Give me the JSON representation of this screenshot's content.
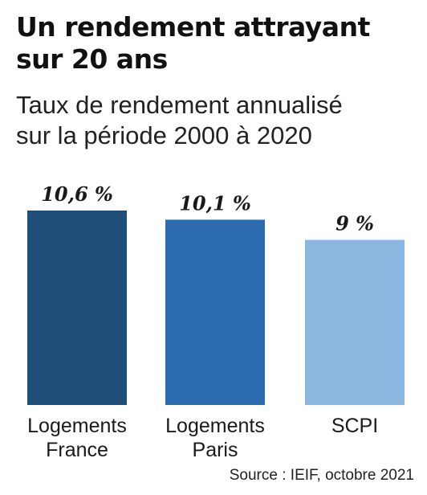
{
  "header": {
    "title_line1": "Un rendement attrayant",
    "title_line2": "sur 20 ans",
    "subtitle_line1": "Taux de rendement annualisé",
    "subtitle_line2": "sur la période 2000 à 2020"
  },
  "footer": {
    "source": "Source : IEIF, octobre 2021"
  },
  "chart_data": {
    "type": "bar",
    "title": "Un rendement attrayant sur 20 ans",
    "subtitle": "Taux de rendement annualisé sur la période 2000 à 2020",
    "categories": [
      [
        "Logements",
        "France"
      ],
      [
        "Logements",
        "Paris"
      ],
      [
        "SCPI"
      ]
    ],
    "values": [
      10.6,
      10.1,
      9
    ],
    "value_labels": [
      "10,6 %",
      "10,1 %",
      "9 %"
    ],
    "unit": "%",
    "colors": [
      "#1f4e79",
      "#2b6cb0",
      "#8ab6e0"
    ],
    "grid": false,
    "legend": "none"
  }
}
